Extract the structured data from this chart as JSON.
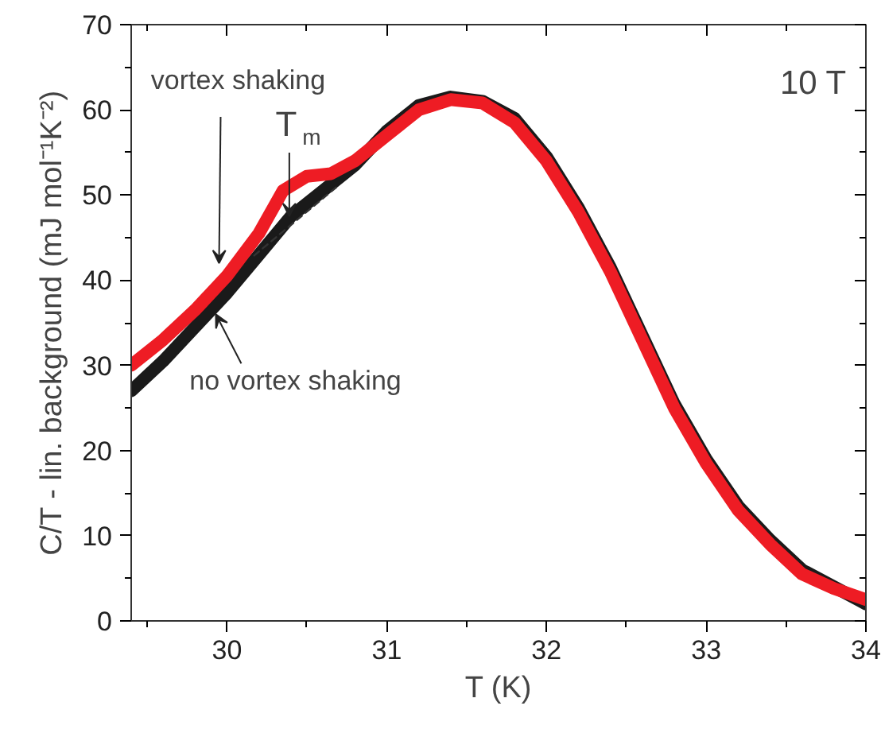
{
  "chart_data": {
    "type": "line",
    "xlabel": "T (K)",
    "ylabel": "C/T - lin. background (mJ mol⁻¹K⁻²)",
    "xlim": [
      29.4,
      34
    ],
    "ylim": [
      0,
      70
    ],
    "xticks": [
      30,
      31,
      32,
      33,
      34
    ],
    "yticks": [
      0,
      10,
      20,
      30,
      40,
      50,
      60,
      70
    ],
    "grid": false,
    "series": [
      {
        "color": "#1a1a1a",
        "x": [
          29.4,
          29.6,
          29.8,
          30.0,
          30.2,
          30.4,
          30.6,
          30.8,
          31.0,
          31.2,
          31.4,
          31.6,
          31.8,
          32.0,
          32.2,
          32.4,
          32.6,
          32.8,
          33.0,
          33.2,
          33.4,
          33.6,
          33.8,
          34.0
        ],
        "values": [
          27,
          30.5,
          34.5,
          38.5,
          43,
          47.5,
          50.5,
          53.5,
          57.5,
          60.5,
          61.5,
          61,
          59,
          54.5,
          48.5,
          41.5,
          33.5,
          25.5,
          19,
          13.5,
          9.5,
          6,
          4,
          2
        ]
      },
      {
        "color": "#ee1c24",
        "x": [
          29.4,
          29.6,
          29.8,
          30.0,
          30.2,
          30.35,
          30.5,
          30.65,
          30.8,
          31.0,
          31.2,
          31.4,
          31.6,
          31.8,
          32.0,
          32.2,
          32.4,
          32.6,
          32.8,
          33.0,
          33.2,
          33.4,
          33.6,
          33.8,
          34.0
        ],
        "values": [
          30,
          33,
          36.5,
          40.5,
          45.5,
          50.5,
          52.2,
          52.5,
          54,
          57,
          60,
          61.2,
          60.8,
          58.5,
          54,
          48,
          41,
          33,
          25,
          18.5,
          13,
          9,
          5.5,
          3.8,
          2.5
        ]
      },
      {
        "color": "#333333",
        "line_style": "dashed",
        "x": [
          30.17,
          30.69
        ],
        "values": [
          42.9,
          51
        ]
      }
    ],
    "annotations": [
      {
        "text": "vortex shaking",
        "x": 29.95,
        "y": 42
      },
      {
        "text": "no vortex shaking",
        "x": 29.93,
        "y": 36
      },
      {
        "text": "T$_{m}$",
        "x": 30.39,
        "y": 47.5
      },
      "10 T"
    ]
  }
}
